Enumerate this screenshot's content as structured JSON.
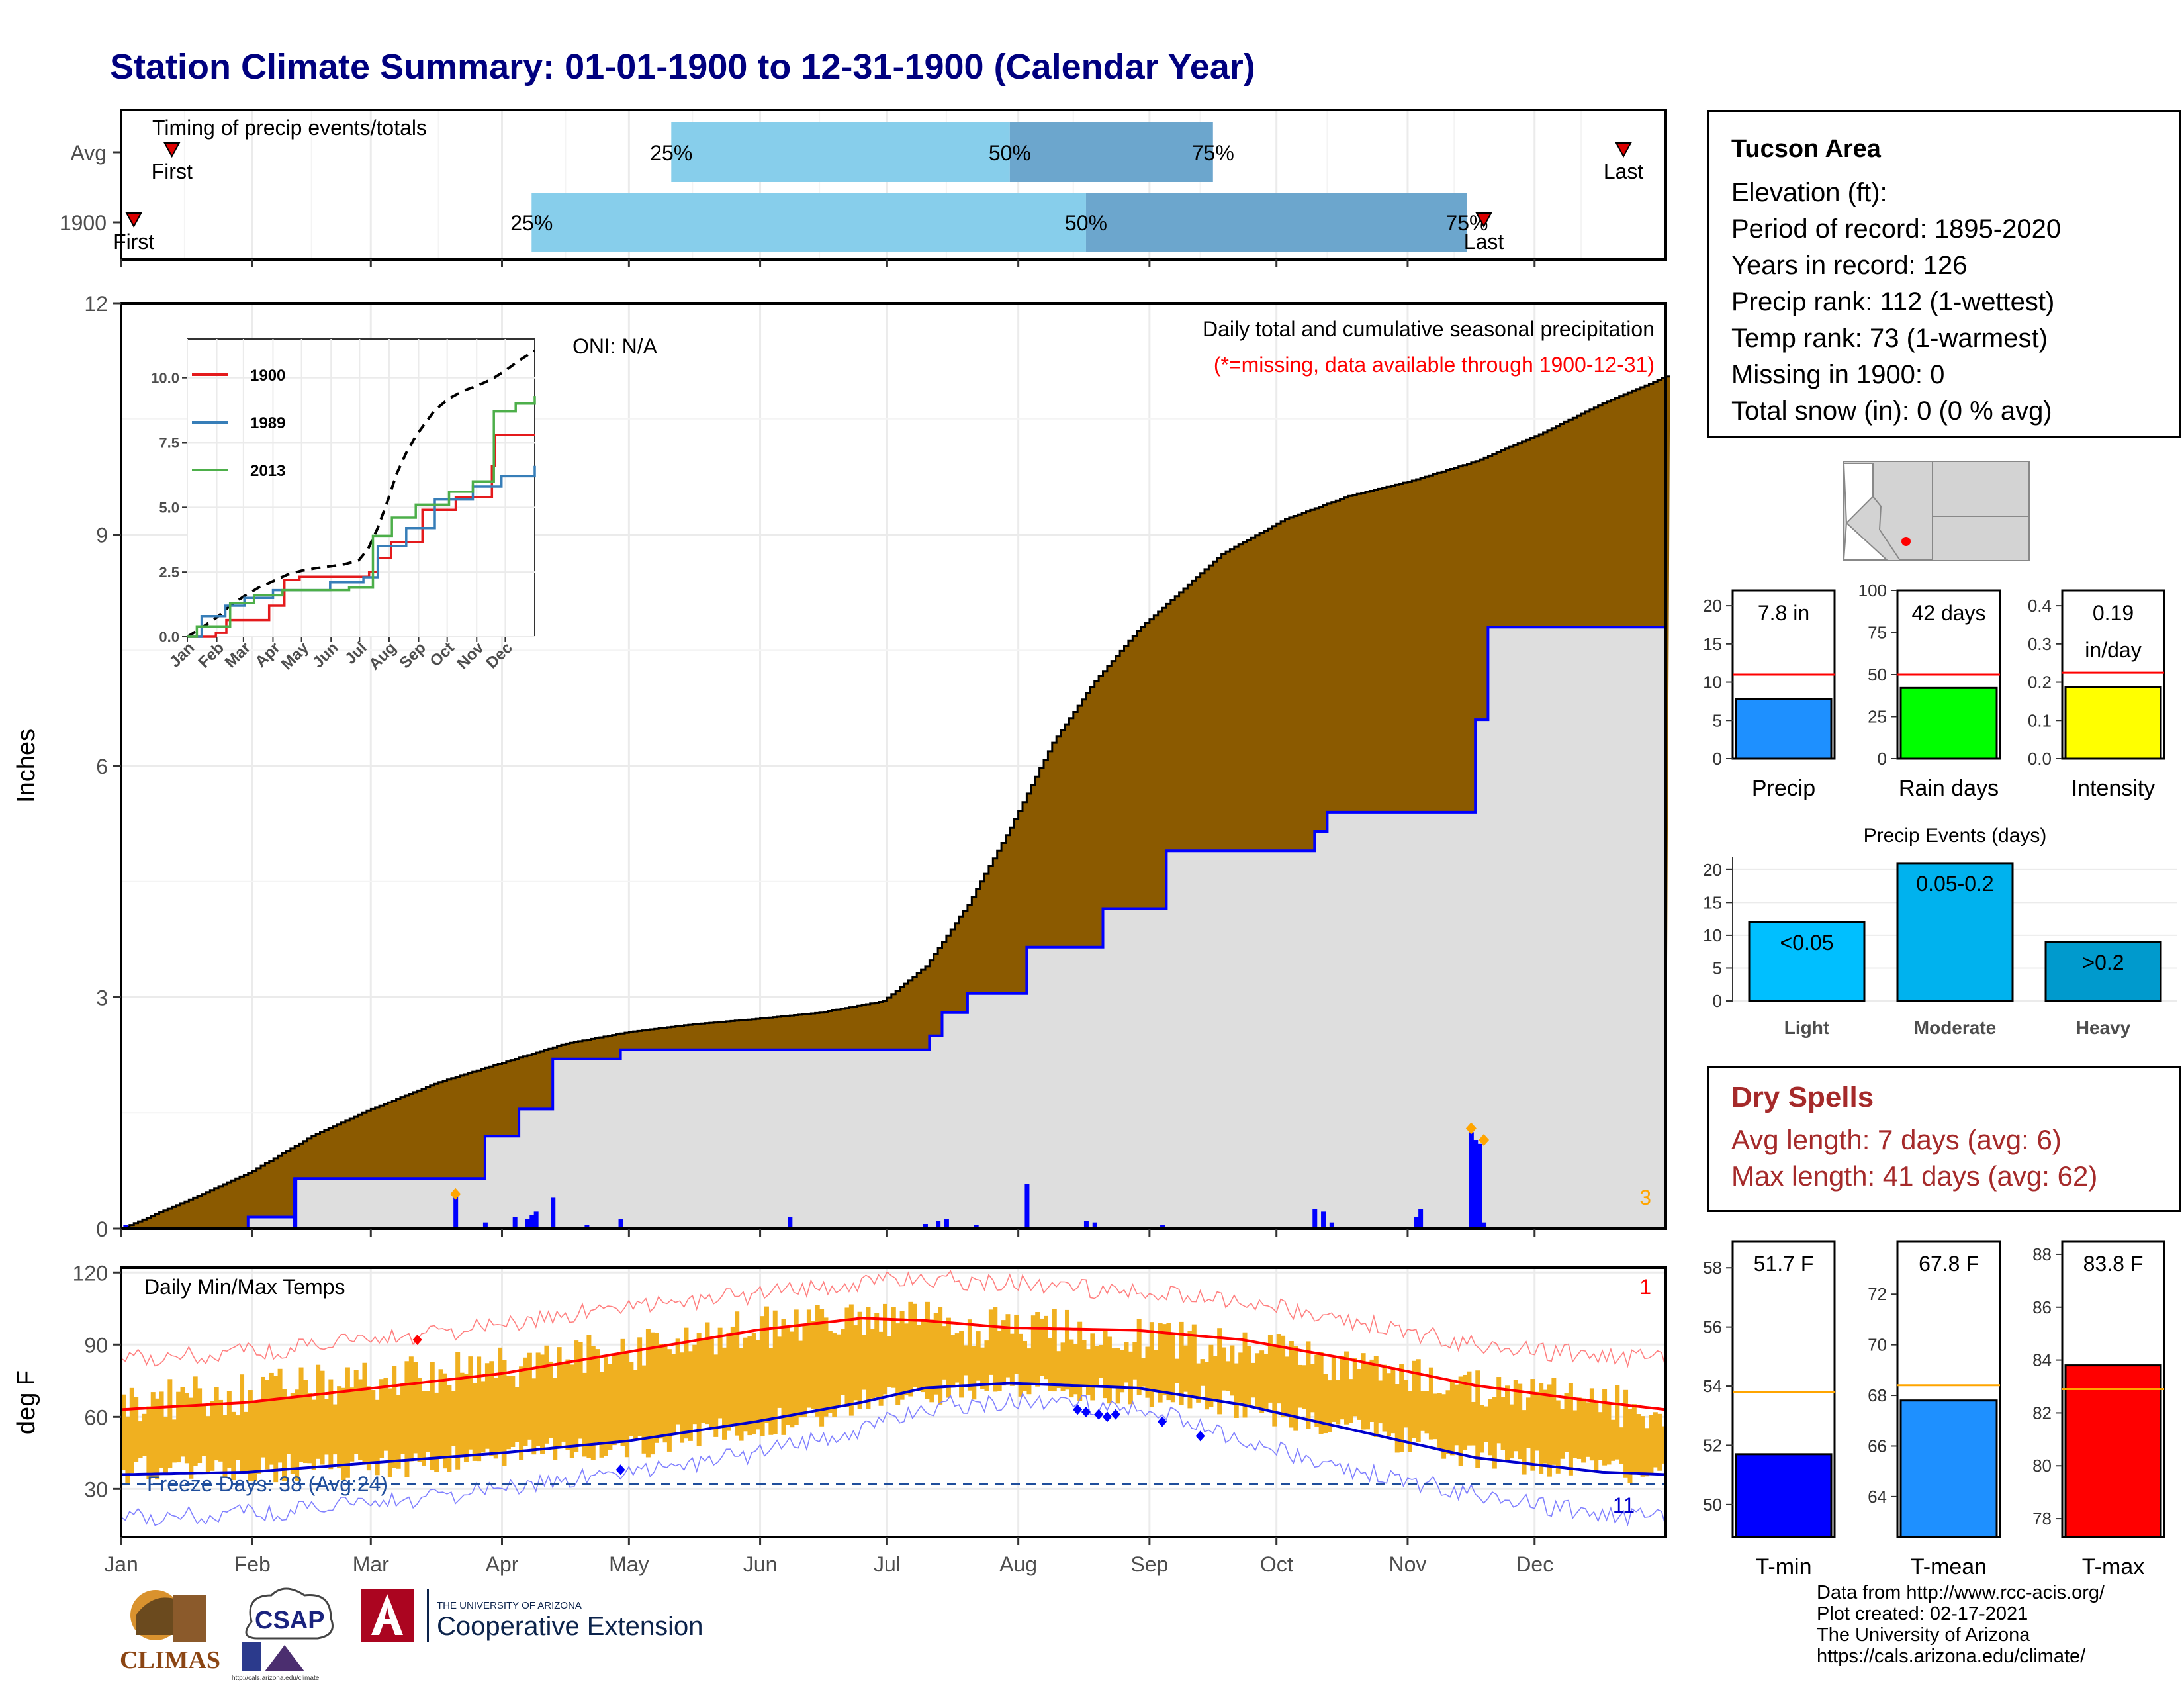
{
  "title": "Station Climate Summary: 01-01-1900 to 12-31-1900 (Calendar Year)",
  "station": {
    "name": "Tucson Area",
    "lines": [
      "Elevation (ft):",
      "Period of record: 1895-2020",
      "Years in record: 126",
      "Precip rank: 112 (1-wettest)",
      "Temp rank: 73 (1-warmest)",
      "Missing in 1900: 0",
      "Total snow (in): 0 (0 % avg)"
    ]
  },
  "dry_spells": {
    "title": "Dry Spells",
    "avg_length": "Avg length: 7 days (avg: 6)",
    "max_length": "Max length: 41 days (avg: 62)"
  },
  "credits": [
    "Data from http://www.rcc-acis.org/",
    "Plot created: 02-17-2021",
    "The University of Arizona",
    "https://cals.arizona.edu/climate/"
  ],
  "logos": {
    "climas": "CLIMAS",
    "csap": "CSAP",
    "csap_url": "http://cals.arizona.edu/climate",
    "ua_small": "THE UNIVERSITY OF ARIZONA",
    "ua_big": "Cooperative Extension"
  },
  "month_labels": [
    "Jan",
    "Feb",
    "Mar",
    "Apr",
    "May",
    "Jun",
    "Jul",
    "Aug",
    "Sep",
    "Oct",
    "Nov",
    "Dec"
  ],
  "chart_data": [
    {
      "id": "timing",
      "type": "bar",
      "title": "Timing of precip events/totals",
      "rows": [
        {
          "label": "Avg",
          "first_label": "First",
          "last_label": "Last",
          "first_day": 12,
          "last_day": 355,
          "p25_day": 130,
          "p50_day": 210,
          "p75_day": 258
        },
        {
          "label": "1900",
          "first_label": "First",
          "last_label": "Last",
          "first_day": 3,
          "last_day": 322,
          "p25_day": 97,
          "p50_day": 228,
          "p75_day": 318
        }
      ],
      "pct_labels": [
        "25%",
        "50%",
        "75%"
      ]
    },
    {
      "id": "precip",
      "type": "area",
      "ylabel": "Inches",
      "ylim": [
        0,
        12
      ],
      "yticks": [
        0,
        3,
        6,
        9,
        12
      ],
      "subtitle": "Daily total and cumulative seasonal precipitation",
      "missing_note": "(*=missing, data available through 1900-12-31)",
      "oni": "ONI: N/A",
      "count_label": "3",
      "avg_cumulative": [
        [
          0,
          0
        ],
        [
          15,
          0.35
        ],
        [
          31,
          0.75
        ],
        [
          45,
          1.2
        ],
        [
          59,
          1.55
        ],
        [
          75,
          1.9
        ],
        [
          90,
          2.15
        ],
        [
          105,
          2.4
        ],
        [
          120,
          2.55
        ],
        [
          135,
          2.65
        ],
        [
          150,
          2.72
        ],
        [
          165,
          2.8
        ],
        [
          180,
          2.95
        ],
        [
          190,
          3.4
        ],
        [
          200,
          4.2
        ],
        [
          210,
          5.2
        ],
        [
          220,
          6.3
        ],
        [
          230,
          7.1
        ],
        [
          240,
          7.75
        ],
        [
          250,
          8.25
        ],
        [
          260,
          8.75
        ],
        [
          275,
          9.2
        ],
        [
          290,
          9.5
        ],
        [
          305,
          9.7
        ],
        [
          320,
          9.95
        ],
        [
          335,
          10.3
        ],
        [
          350,
          10.7
        ],
        [
          365,
          11.05
        ]
      ],
      "year_cumulative": [
        [
          0,
          0
        ],
        [
          30,
          0
        ],
        [
          30,
          0.15
        ],
        [
          41,
          0.15
        ],
        [
          41,
          0.65
        ],
        [
          86,
          0.65
        ],
        [
          86,
          1.2
        ],
        [
          94,
          1.2
        ],
        [
          94,
          1.55
        ],
        [
          102,
          1.55
        ],
        [
          102,
          2.2
        ],
        [
          118,
          2.2
        ],
        [
          118,
          2.32
        ],
        [
          191,
          2.32
        ],
        [
          191,
          2.5
        ],
        [
          194,
          2.5
        ],
        [
          194,
          2.8
        ],
        [
          200,
          2.8
        ],
        [
          200,
          3.05
        ],
        [
          214,
          3.05
        ],
        [
          214,
          3.65
        ],
        [
          232,
          3.65
        ],
        [
          232,
          4.15
        ],
        [
          247,
          4.15
        ],
        [
          247,
          4.9
        ],
        [
          282,
          4.9
        ],
        [
          282,
          5.15
        ],
        [
          285,
          5.15
        ],
        [
          285,
          5.4
        ],
        [
          320,
          5.4
        ],
        [
          320,
          6.6
        ],
        [
          323,
          6.6
        ],
        [
          323,
          7.8
        ],
        [
          365,
          7.8
        ]
      ],
      "daily": [
        [
          1,
          0.05
        ],
        [
          41,
          0.65
        ],
        [
          79,
          0.45
        ],
        [
          86,
          0.08
        ],
        [
          93,
          0.15
        ],
        [
          96,
          0.12
        ],
        [
          97,
          0.18
        ],
        [
          98,
          0.22
        ],
        [
          102,
          0.4
        ],
        [
          110,
          0.05
        ],
        [
          118,
          0.12
        ],
        [
          158,
          0.15
        ],
        [
          190,
          0.06
        ],
        [
          193,
          0.1
        ],
        [
          195,
          0.12
        ],
        [
          202,
          0.05
        ],
        [
          214,
          0.58
        ],
        [
          228,
          0.1
        ],
        [
          230,
          0.08
        ],
        [
          246,
          0.05
        ],
        [
          282,
          0.25
        ],
        [
          284,
          0.22
        ],
        [
          286,
          0.08
        ],
        [
          306,
          0.15
        ],
        [
          307,
          0.25
        ],
        [
          319,
          1.25
        ],
        [
          320,
          1.15
        ],
        [
          321,
          1.1
        ],
        [
          322,
          0.08
        ]
      ],
      "flagged": [
        [
          79,
          0.45
        ],
        [
          319,
          1.3
        ],
        [
          322,
          1.15
        ]
      ],
      "inset": {
        "xlabels": [
          "Jan",
          "Feb",
          "Mar",
          "Apr",
          "May",
          "Jun",
          "Jul",
          "Aug",
          "Sep",
          "Oct",
          "Nov",
          "Dec"
        ],
        "yticks": [
          0.0,
          2.5,
          5.0,
          7.5,
          10.0
        ],
        "ylim": [
          0,
          11.5
        ],
        "series": [
          {
            "name": "1900",
            "color": "#e41a1c",
            "values": [
              [
                0,
                0
              ],
              [
                30,
                0.15
              ],
              [
                41,
                0.65
              ],
              [
                86,
                1.2
              ],
              [
                102,
                2.2
              ],
              [
                118,
                2.32
              ],
              [
                191,
                2.5
              ],
              [
                200,
                3.05
              ],
              [
                214,
                3.65
              ],
              [
                247,
                4.9
              ],
              [
                282,
                5.4
              ],
              [
                320,
                6.6
              ],
              [
                323,
                7.8
              ],
              [
                365,
                7.8
              ]
            ]
          },
          {
            "name": "1989",
            "color": "#377eb8",
            "values": [
              [
                0,
                0
              ],
              [
                15,
                0.8
              ],
              [
                40,
                1.2
              ],
              [
                60,
                1.5
              ],
              [
                90,
                1.8
              ],
              [
                150,
                2.1
              ],
              [
                185,
                2.3
              ],
              [
                200,
                3.5
              ],
              [
                230,
                4.2
              ],
              [
                260,
                5.3
              ],
              [
                300,
                5.8
              ],
              [
                330,
                6.2
              ],
              [
                365,
                6.6
              ]
            ]
          },
          {
            "name": "2013",
            "color": "#4daf4a",
            "values": [
              [
                0,
                0
              ],
              [
                10,
                0.4
              ],
              [
                45,
                1.3
              ],
              [
                70,
                1.6
              ],
              [
                100,
                1.8
              ],
              [
                170,
                1.9
              ],
              [
                195,
                3.9
              ],
              [
                215,
                4.6
              ],
              [
                240,
                5.1
              ],
              [
                275,
                5.6
              ],
              [
                300,
                6.0
              ],
              [
                322,
                8.7
              ],
              [
                345,
                9.0
              ],
              [
                365,
                9.3
              ]
            ]
          }
        ],
        "avg_color": "#000000"
      }
    },
    {
      "id": "temps",
      "type": "line",
      "title": "Daily Min/Max Temps",
      "ylabel": "deg F",
      "ylim": [
        10,
        122
      ],
      "yticks": [
        30,
        60,
        90,
        120
      ],
      "freeze_label": "Freeze Days: 38 (Avg:24)",
      "freeze_line": 32,
      "record_count_high": "1",
      "record_count_low": "11",
      "avg_max": [
        [
          0,
          63
        ],
        [
          30,
          66
        ],
        [
          60,
          72
        ],
        [
          90,
          78
        ],
        [
          120,
          87
        ],
        [
          150,
          96
        ],
        [
          175,
          101
        ],
        [
          190,
          100
        ],
        [
          210,
          97
        ],
        [
          240,
          96
        ],
        [
          265,
          92
        ],
        [
          290,
          84
        ],
        [
          320,
          73
        ],
        [
          350,
          66
        ],
        [
          365,
          63
        ]
      ],
      "avg_min": [
        [
          0,
          36
        ],
        [
          30,
          37
        ],
        [
          60,
          41
        ],
        [
          90,
          45
        ],
        [
          120,
          50
        ],
        [
          150,
          58
        ],
        [
          175,
          66
        ],
        [
          190,
          72
        ],
        [
          210,
          74
        ],
        [
          240,
          72
        ],
        [
          265,
          65
        ],
        [
          290,
          55
        ],
        [
          320,
          43
        ],
        [
          350,
          37
        ],
        [
          365,
          36
        ]
      ],
      "record_max": [
        [
          0,
          84
        ],
        [
          30,
          87
        ],
        [
          60,
          92
        ],
        [
          90,
          98
        ],
        [
          120,
          106
        ],
        [
          150,
          111
        ],
        [
          175,
          116
        ],
        [
          195,
          117
        ],
        [
          220,
          114
        ],
        [
          245,
          111
        ],
        [
          265,
          108
        ],
        [
          290,
          100
        ],
        [
          320,
          90
        ],
        [
          350,
          85
        ],
        [
          365,
          84
        ]
      ],
      "record_min": [
        [
          0,
          18
        ],
        [
          30,
          20
        ],
        [
          60,
          24
        ],
        [
          90,
          30
        ],
        [
          120,
          37
        ],
        [
          150,
          45
        ],
        [
          175,
          55
        ],
        [
          195,
          65
        ],
        [
          220,
          66
        ],
        [
          245,
          62
        ],
        [
          265,
          50
        ],
        [
          290,
          38
        ],
        [
          320,
          28
        ],
        [
          350,
          19
        ],
        [
          365,
          18
        ]
      ],
      "year_max_base": [
        [
          0,
          65
        ],
        [
          30,
          70
        ],
        [
          60,
          75
        ],
        [
          90,
          80
        ],
        [
          120,
          88
        ],
        [
          150,
          97
        ],
        [
          175,
          100
        ],
        [
          200,
          98
        ],
        [
          230,
          95
        ],
        [
          260,
          90
        ],
        [
          290,
          82
        ],
        [
          320,
          72
        ],
        [
          350,
          65
        ],
        [
          365,
          62
        ]
      ],
      "year_min_base": [
        [
          0,
          38
        ],
        [
          30,
          38
        ],
        [
          60,
          40
        ],
        [
          90,
          44
        ],
        [
          120,
          48
        ],
        [
          150,
          56
        ],
        [
          175,
          66
        ],
        [
          200,
          72
        ],
        [
          230,
          72
        ],
        [
          260,
          66
        ],
        [
          290,
          55
        ],
        [
          320,
          44
        ],
        [
          350,
          38
        ],
        [
          365,
          35
        ]
      ],
      "record_high_days": [
        [
          70,
          92
        ]
      ],
      "record_low_days": [
        [
          118,
          38
        ],
        [
          226,
          63
        ],
        [
          228,
          62
        ],
        [
          231,
          61
        ],
        [
          233,
          60
        ],
        [
          235,
          61
        ],
        [
          246,
          58
        ],
        [
          255,
          52
        ]
      ]
    },
    {
      "id": "precip-bars",
      "type": "bar",
      "panels": [
        {
          "name": "Precip",
          "label": "7.8 in",
          "value": 7.8,
          "avg": 11.0,
          "ylim": [
            0,
            22
          ],
          "yticks": [
            0,
            5,
            10,
            15,
            20
          ],
          "color": "#1e90ff"
        },
        {
          "name": "Rain days",
          "label": "42 days",
          "value": 42,
          "avg": 50,
          "ylim": [
            0,
            100
          ],
          "yticks": [
            0,
            25,
            50,
            75,
            100
          ],
          "color": "#00ff00"
        },
        {
          "name": "Intensity",
          "label_lines": [
            "0.19",
            "in/day"
          ],
          "value": 0.187,
          "avg": 0.225,
          "ylim": [
            0,
            0.44
          ],
          "yticks": [
            0.0,
            0.1,
            0.2,
            0.3,
            0.4
          ],
          "color": "#ffff00"
        }
      ]
    },
    {
      "id": "precip-events",
      "type": "bar",
      "title": "Precip Events (days)",
      "categories": [
        "Light",
        "Moderate",
        "Heavy"
      ],
      "values": [
        12,
        21,
        9
      ],
      "labels": [
        "<0.05",
        "0.05-0.2",
        ">0.2"
      ],
      "colors": [
        "#00bfff",
        "#00b2ee",
        "#009acd"
      ],
      "ylim": [
        0,
        22
      ],
      "yticks": [
        0,
        5,
        10,
        15,
        20
      ]
    },
    {
      "id": "temp-bars",
      "type": "bar",
      "panels": [
        {
          "name": "T-min",
          "label": "51.7 F",
          "value": 51.7,
          "avg": 53.8,
          "ylim": [
            48.9,
            58.9
          ],
          "yticks": [
            50,
            52,
            54,
            56,
            58
          ],
          "color": "#0000ff"
        },
        {
          "name": "T-mean",
          "label": "67.8 F",
          "value": 67.8,
          "avg": 68.4,
          "ylim": [
            62.4,
            74.1
          ],
          "yticks": [
            64,
            66,
            68,
            70,
            72
          ],
          "color": "#1e90ff"
        },
        {
          "name": "T-max",
          "label": "83.8 F",
          "value": 83.8,
          "avg": 82.9,
          "ylim": [
            77.3,
            88.5
          ],
          "yticks": [
            78,
            80,
            82,
            84,
            86,
            88
          ],
          "color": "#ff0000"
        }
      ]
    }
  ]
}
